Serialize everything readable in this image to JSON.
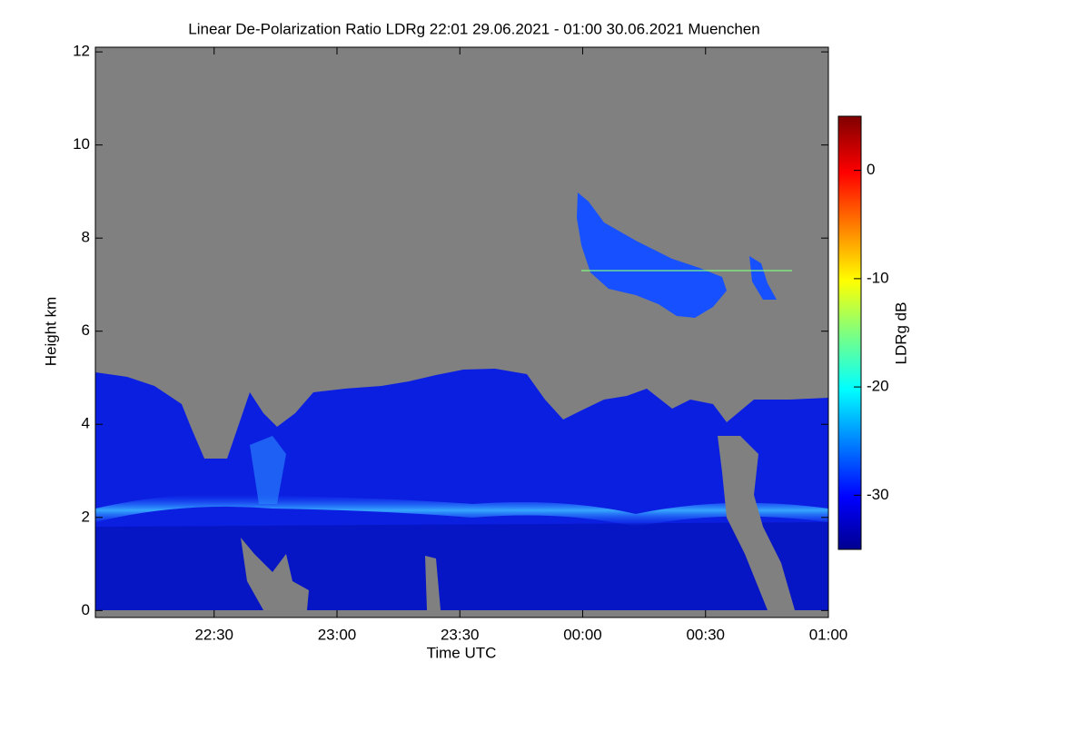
{
  "chart_data": {
    "type": "heatmap",
    "title": "Linear De-Polarization Ratio LDRg   22:01 29.06.2021 - 01:00 30.06.2021 Muenchen",
    "x_label": "Time UTC",
    "y_label": "Height km",
    "xlim": [
      1,
      180
    ],
    "xticks": [
      {
        "value": 30,
        "label": "22:30"
      },
      {
        "value": 60,
        "label": "23:00"
      },
      {
        "value": 90,
        "label": "23:30"
      },
      {
        "value": 120,
        "label": "00:00"
      },
      {
        "value": 150,
        "label": "00:30"
      },
      {
        "value": 180,
        "label": "01:00"
      }
    ],
    "ylim": [
      -0.15,
      12.1
    ],
    "yticks": [
      0,
      2,
      4,
      6,
      8,
      10,
      12
    ],
    "colorbar": {
      "label": "LDRg dB",
      "clim": [
        -35,
        5
      ],
      "ticks": [
        0,
        -10,
        -20,
        -30
      ],
      "colormap": "jet"
    }
  }
}
